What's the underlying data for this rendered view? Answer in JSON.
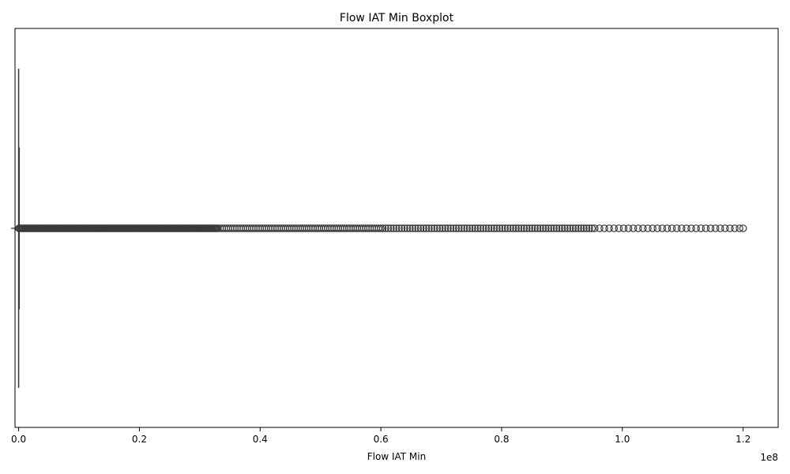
{
  "chart_data": {
    "type": "boxplot",
    "title": "Flow IAT Min Boxplot",
    "xlabel": "Flow IAT Min",
    "ylabel": "",
    "x_scale_note": "1e8",
    "xlim": [
      -0.006,
      1.258
    ],
    "x_ticks": [
      0.0,
      0.2,
      0.4,
      0.6,
      0.8,
      1.0,
      1.2
    ],
    "x_tick_labels": [
      "0.0",
      "0.2",
      "0.4",
      "0.6",
      "0.8",
      "1.0",
      "1.2"
    ],
    "grid": false,
    "orientation": "horizontal",
    "box": {
      "whisker_low": 0.0,
      "q1": 0.0,
      "median": 0.0,
      "q3": 0.0,
      "whisker_high": 0.0002
    },
    "outlier_range": [
      0.0,
      1.2
    ],
    "box_color": "#3a3a3a",
    "outlier_color": "#3a3a3a"
  }
}
